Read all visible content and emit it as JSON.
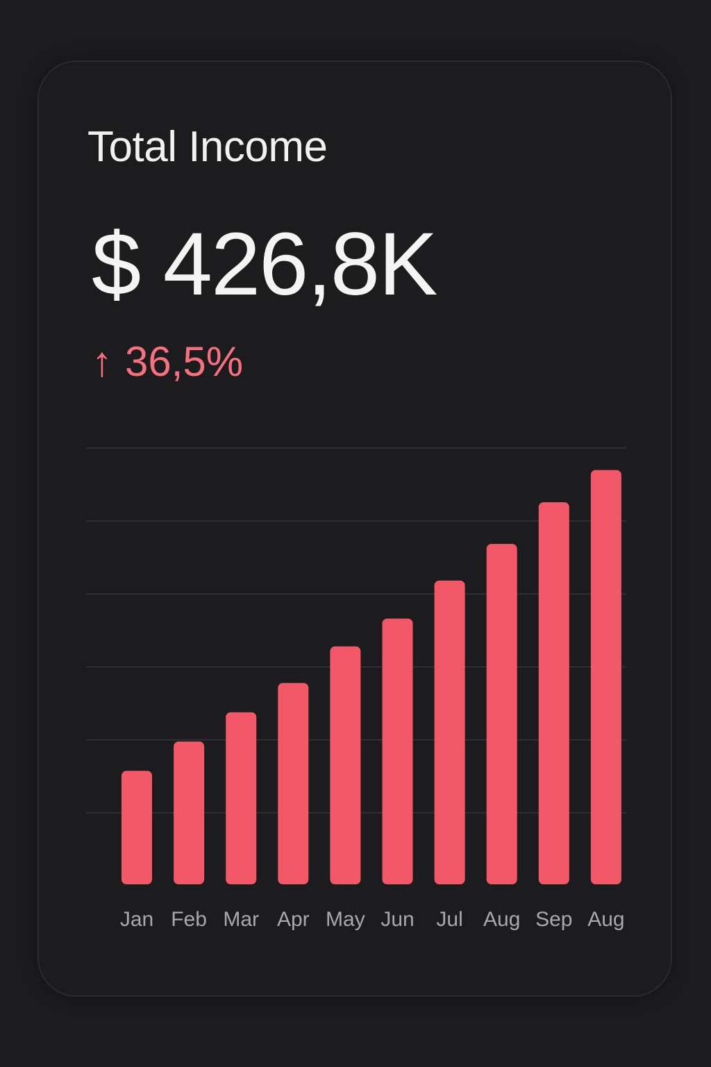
{
  "card": {
    "title": "Total Income",
    "amount": "$ 426,8K",
    "change_icon": "arrow-up-icon",
    "change_value": "36,5%"
  },
  "colors": {
    "background": "#1c1c1f",
    "bar": "#f25868",
    "change": "#f7707f",
    "grid": "#2e2e33",
    "label": "#a9a9ad"
  },
  "chart_data": {
    "type": "bar",
    "categories": [
      "Jan",
      "Feb",
      "Mar",
      "Apr",
      "May",
      "Jun",
      "Jul",
      "Aug",
      "Sep",
      "Aug"
    ],
    "values": [
      155,
      195,
      235,
      275,
      325,
      363,
      415,
      465,
      522,
      566
    ],
    "ylim": [
      0,
      596
    ],
    "grid": true
  }
}
